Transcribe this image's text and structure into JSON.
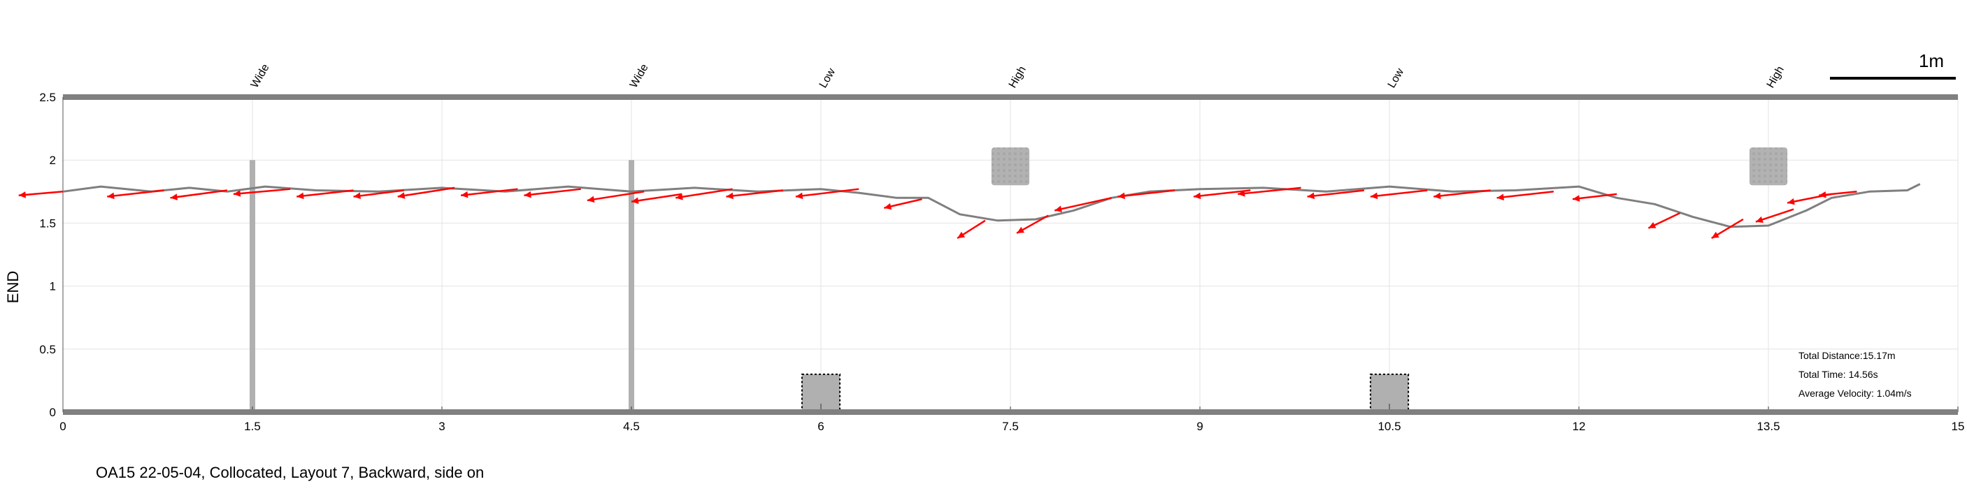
{
  "caption": "OA15 22-05-04, Collocated, Layout 7, Backward, side on",
  "stats": {
    "distance": "Total Distance:15.17m",
    "time": "Total Time: 14.56s",
    "velocity": "Average Velocity: 1.04m/s"
  },
  "scale_bar_label": "1m",
  "colors": {
    "path": "#7f7f7f",
    "arrows": "#ff0000",
    "obstacles": "#b0b0b0",
    "axis_band": "#808080",
    "grid": "#e3e3e3"
  },
  "chart_data": {
    "type": "line",
    "title": "",
    "xlabel": "",
    "ylabel": "END",
    "xlim": [
      0,
      15
    ],
    "ylim": [
      0,
      2.5
    ],
    "xticks": [
      "0",
      "1.5",
      "3",
      "4.5",
      "6",
      "7.5",
      "9",
      "10.5",
      "12",
      "13.5",
      "15"
    ],
    "yticks": [
      "0",
      "0.5",
      "1",
      "1.5",
      "2",
      "2.5"
    ],
    "grid": true,
    "obstacle_labels": [
      {
        "x": 1.5,
        "label": "Wide"
      },
      {
        "x": 4.5,
        "label": "Wide"
      },
      {
        "x": 6.0,
        "label": "Low"
      },
      {
        "x": 7.5,
        "label": "High"
      },
      {
        "x": 10.5,
        "label": "Low"
      },
      {
        "x": 13.5,
        "label": "High"
      }
    ],
    "obstacles": [
      {
        "kind": "Wide",
        "x": 1.5,
        "y_range": [
          0,
          2.0
        ]
      },
      {
        "kind": "Wide",
        "x": 4.5,
        "y_range": [
          0,
          2.0
        ]
      },
      {
        "kind": "Low",
        "x_range": [
          5.85,
          6.15
        ],
        "y_range": [
          0,
          0.3
        ]
      },
      {
        "kind": "High",
        "x_range": [
          7.35,
          7.65
        ],
        "y_range": [
          1.8,
          2.1
        ]
      },
      {
        "kind": "Low",
        "x_range": [
          10.35,
          10.65
        ],
        "y_range": [
          0,
          0.3
        ]
      },
      {
        "kind": "High",
        "x_range": [
          13.35,
          13.65
        ],
        "y_range": [
          1.8,
          2.1
        ]
      }
    ],
    "series": [
      {
        "x": [
          0,
          0.3,
          0.7,
          1.0,
          1.3,
          1.6,
          2.0,
          2.5,
          3.0,
          3.5,
          4.0,
          4.5,
          5.0,
          5.5,
          6.0,
          6.3,
          6.6,
          6.85,
          7.1,
          7.4,
          7.7,
          8.0,
          8.3,
          8.6,
          9.0,
          9.5,
          10.0,
          10.5,
          11.0,
          11.5,
          12.0,
          12.3,
          12.6,
          12.9,
          13.2,
          13.5,
          13.8,
          14.0,
          14.3,
          14.6,
          14.7
        ],
        "y": [
          1.75,
          1.79,
          1.75,
          1.78,
          1.75,
          1.79,
          1.76,
          1.75,
          1.78,
          1.75,
          1.79,
          1.75,
          1.78,
          1.75,
          1.77,
          1.74,
          1.7,
          1.7,
          1.57,
          1.52,
          1.53,
          1.6,
          1.7,
          1.75,
          1.77,
          1.78,
          1.75,
          1.79,
          1.75,
          1.76,
          1.79,
          1.7,
          1.65,
          1.55,
          1.47,
          1.48,
          1.6,
          1.7,
          1.75,
          1.76,
          1.81
        ]
      }
    ],
    "arrows": [
      {
        "x": 0.0,
        "y": 1.75,
        "dx": -0.35,
        "dy": -0.03
      },
      {
        "x": 0.8,
        "y": 1.76,
        "dx": -0.45,
        "dy": -0.05
      },
      {
        "x": 1.3,
        "y": 1.76,
        "dx": -0.45,
        "dy": -0.06
      },
      {
        "x": 1.8,
        "y": 1.77,
        "dx": -0.45,
        "dy": -0.04
      },
      {
        "x": 2.3,
        "y": 1.76,
        "dx": -0.45,
        "dy": -0.05
      },
      {
        "x": 2.7,
        "y": 1.76,
        "dx": -0.4,
        "dy": -0.05
      },
      {
        "x": 3.1,
        "y": 1.78,
        "dx": -0.45,
        "dy": -0.07
      },
      {
        "x": 3.6,
        "y": 1.77,
        "dx": -0.45,
        "dy": -0.05
      },
      {
        "x": 4.1,
        "y": 1.77,
        "dx": -0.45,
        "dy": -0.05
      },
      {
        "x": 4.6,
        "y": 1.75,
        "dx": -0.45,
        "dy": -0.07
      },
      {
        "x": 4.9,
        "y": 1.73,
        "dx": -0.4,
        "dy": -0.06
      },
      {
        "x": 5.3,
        "y": 1.77,
        "dx": -0.45,
        "dy": -0.07
      },
      {
        "x": 5.7,
        "y": 1.76,
        "dx": -0.45,
        "dy": -0.05
      },
      {
        "x": 6.3,
        "y": 1.77,
        "dx": -0.5,
        "dy": -0.06
      },
      {
        "x": 6.8,
        "y": 1.69,
        "dx": -0.3,
        "dy": -0.07
      },
      {
        "x": 7.3,
        "y": 1.52,
        "dx": -0.22,
        "dy": -0.14
      },
      {
        "x": 7.8,
        "y": 1.56,
        "dx": -0.25,
        "dy": -0.14
      },
      {
        "x": 8.3,
        "y": 1.7,
        "dx": -0.45,
        "dy": -0.1
      },
      {
        "x": 8.8,
        "y": 1.76,
        "dx": -0.45,
        "dy": -0.05
      },
      {
        "x": 9.4,
        "y": 1.76,
        "dx": -0.45,
        "dy": -0.05
      },
      {
        "x": 9.8,
        "y": 1.78,
        "dx": -0.5,
        "dy": -0.05
      },
      {
        "x": 10.3,
        "y": 1.76,
        "dx": -0.45,
        "dy": -0.05
      },
      {
        "x": 10.8,
        "y": 1.76,
        "dx": -0.45,
        "dy": -0.05
      },
      {
        "x": 11.3,
        "y": 1.76,
        "dx": -0.45,
        "dy": -0.05
      },
      {
        "x": 11.8,
        "y": 1.75,
        "dx": -0.45,
        "dy": -0.05
      },
      {
        "x": 12.3,
        "y": 1.73,
        "dx": -0.35,
        "dy": -0.04
      },
      {
        "x": 12.8,
        "y": 1.58,
        "dx": -0.25,
        "dy": -0.12
      },
      {
        "x": 13.3,
        "y": 1.53,
        "dx": -0.25,
        "dy": -0.15
      },
      {
        "x": 13.7,
        "y": 1.61,
        "dx": -0.3,
        "dy": -0.1
      },
      {
        "x": 14.0,
        "y": 1.73,
        "dx": -0.35,
        "dy": -0.07
      },
      {
        "x": 14.2,
        "y": 1.75,
        "dx": -0.3,
        "dy": -0.03
      }
    ]
  }
}
